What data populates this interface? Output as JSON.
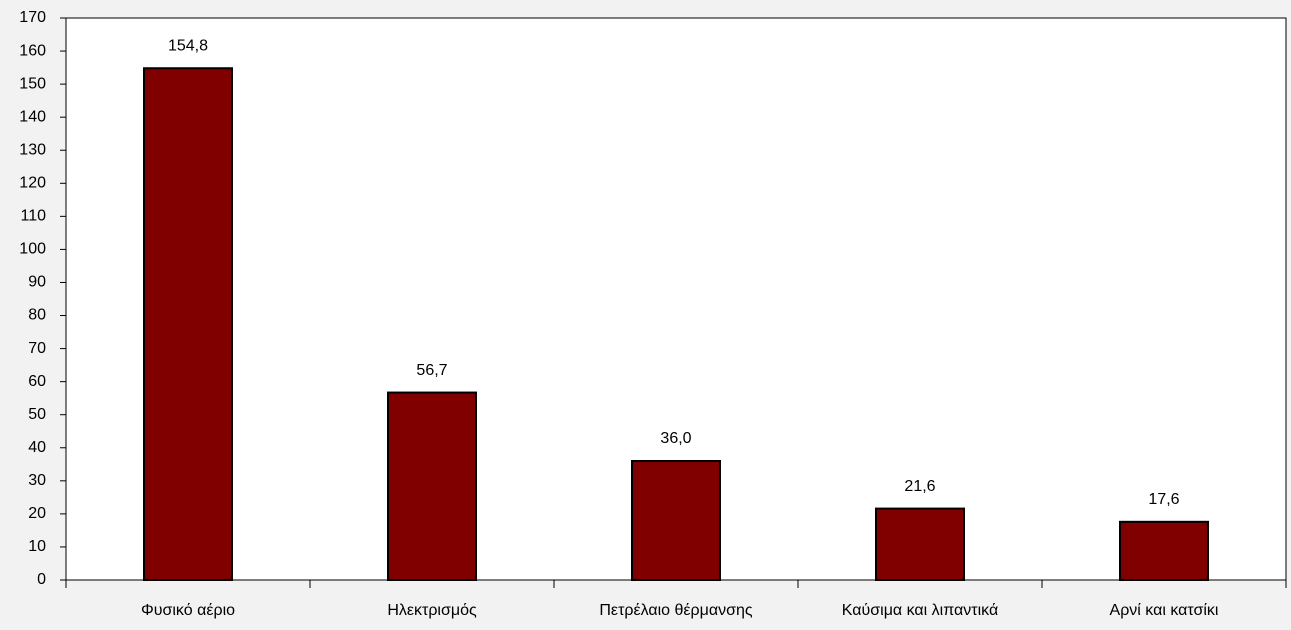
{
  "chart_data": {
    "type": "bar",
    "categories": [
      "Φυσικό αέριο",
      "Ηλεκτρισμός",
      "Πετρέλαιο θέρμανσης",
      "Καύσιμα και λιπαντικά",
      "Αρνί και κατσίκι"
    ],
    "values": [
      154.8,
      56.7,
      36.0,
      21.6,
      17.6
    ],
    "value_labels": [
      "154,8",
      "56,7",
      "36,0",
      "21,6",
      "17,6"
    ],
    "color": "#800000",
    "ylim": [
      0,
      170
    ],
    "yticks": [
      0,
      10,
      20,
      30,
      40,
      50,
      60,
      70,
      80,
      90,
      100,
      110,
      120,
      130,
      140,
      150,
      160,
      170
    ],
    "grid": false
  }
}
